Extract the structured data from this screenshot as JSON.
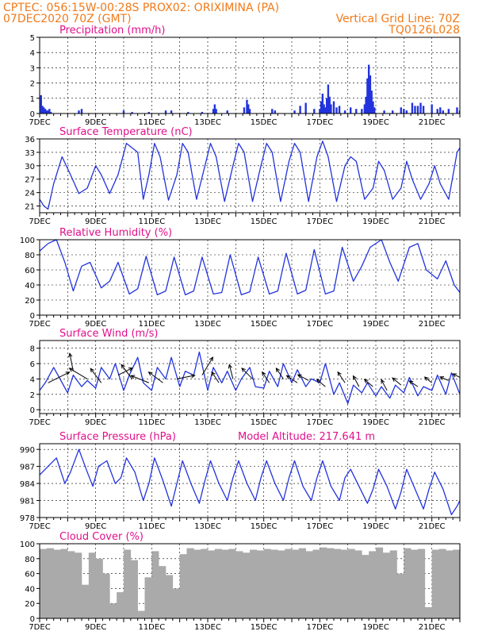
{
  "header": {
    "line1": "CPTEC:   056:15W-00:28S   PROX02: ORIXIMINA (PA)",
    "line2_left": "07DEC2020 70Z (GMT)",
    "line2_right": "Vertical Grid Line: 70Z",
    "line3_right": "TQ0126L028"
  },
  "colors": {
    "header": "#f07a1a",
    "title": "#e0108a",
    "series": "#2233dd",
    "cloud": "#aaaaaa",
    "arrow": "#000000"
  },
  "chart_data": [
    {
      "id": "precip",
      "type": "bar",
      "title": "Precipitation (mm/h)",
      "xlabel": "",
      "ylabel": "",
      "ylim": [
        0,
        5
      ],
      "yticks": [
        0,
        1,
        2,
        3,
        4,
        5
      ],
      "xlim": [
        7,
        22
      ],
      "xticks": [
        "7DEC",
        "9DEC",
        "11DEC",
        "13DEC",
        "15DEC",
        "17DEC",
        "19DEC",
        "21DEC"
      ],
      "x": [
        7.05,
        7.1,
        7.15,
        7.2,
        7.25,
        7.3,
        7.35,
        7.4,
        8.4,
        8.5,
        10.0,
        10.3,
        10.9,
        11.5,
        11.7,
        12.3,
        12.8,
        13.2,
        13.25,
        13.3,
        13.7,
        14.3,
        14.4,
        14.45,
        14.5,
        15.3,
        15.4,
        16.1,
        16.3,
        16.5,
        16.8,
        17.0,
        17.05,
        17.1,
        17.15,
        17.2,
        17.25,
        17.3,
        17.35,
        17.4,
        17.5,
        17.6,
        17.7,
        17.9,
        18.1,
        18.3,
        18.5,
        18.6,
        18.65,
        18.7,
        18.75,
        18.8,
        18.85,
        18.9,
        18.95,
        19.3,
        19.6,
        19.9,
        20.0,
        20.1,
        20.3,
        20.4,
        20.5,
        20.6,
        20.7,
        21.0,
        21.2,
        21.3,
        21.4,
        21.6,
        21.9,
        22.0
      ],
      "values": [
        1.2,
        0.5,
        0.4,
        0.3,
        0.2,
        0.2,
        0.3,
        0.1,
        0.2,
        0.3,
        0.2,
        0.1,
        0.1,
        0.2,
        0.2,
        0.1,
        0.1,
        0.3,
        0.6,
        0.3,
        0.2,
        0.4,
        0.9,
        0.6,
        0.3,
        0.3,
        0.2,
        0.2,
        0.5,
        0.7,
        0.3,
        0.3,
        0.8,
        1.3,
        0.6,
        0.4,
        1.0,
        1.9,
        1.1,
        0.6,
        0.8,
        0.4,
        0.5,
        0.2,
        0.4,
        0.3,
        0.3,
        0.6,
        1.1,
        2.3,
        3.2,
        2.5,
        1.5,
        0.8,
        0.4,
        0.2,
        0.2,
        0.4,
        0.3,
        0.2,
        0.7,
        0.5,
        0.5,
        0.7,
        0.5,
        0.6,
        0.3,
        0.4,
        0.2,
        0.3,
        0.4,
        0.2
      ]
    },
    {
      "id": "temp",
      "type": "line",
      "title": "Surface Temperature (nC)",
      "xlabel": "",
      "ylabel": "",
      "ylim": [
        19.5,
        36
      ],
      "yticks": [
        21,
        24,
        27,
        30,
        33,
        36
      ],
      "xlim": [
        7,
        22
      ],
      "xticks": [
        "7DEC",
        "9DEC",
        "11DEC",
        "13DEC",
        "15DEC",
        "17DEC",
        "19DEC",
        "21DEC"
      ],
      "x": [
        7.0,
        7.15,
        7.3,
        7.5,
        7.8,
        8.1,
        8.4,
        8.7,
        9.0,
        9.2,
        9.5,
        9.8,
        10.1,
        10.5,
        10.7,
        10.9,
        11.1,
        11.3,
        11.6,
        11.9,
        12.1,
        12.3,
        12.6,
        12.9,
        13.1,
        13.3,
        13.6,
        13.9,
        14.1,
        14.3,
        14.6,
        14.9,
        15.1,
        15.3,
        15.6,
        15.9,
        16.1,
        16.3,
        16.6,
        16.9,
        17.1,
        17.3,
        17.6,
        17.9,
        18.1,
        18.3,
        18.6,
        18.9,
        19.1,
        19.3,
        19.6,
        19.9,
        20.1,
        20.3,
        20.6,
        20.9,
        21.1,
        21.3,
        21.6,
        21.9,
        22.0
      ],
      "values": [
        22.5,
        21.0,
        20.3,
        26,
        32,
        28,
        23.8,
        25,
        30,
        28,
        23.8,
        28,
        35,
        33,
        22.5,
        28,
        35,
        32,
        22.3,
        28,
        35,
        33,
        22.5,
        30,
        35,
        32,
        22.0,
        30,
        35,
        33,
        22.0,
        30,
        35,
        33,
        22.0,
        31,
        35,
        33,
        22.0,
        32,
        35.5,
        32,
        22.0,
        30,
        32,
        31,
        22.5,
        25,
        31,
        29,
        22.5,
        25,
        31,
        27,
        22.5,
        26,
        30,
        26,
        22.5,
        33,
        34
      ]
    },
    {
      "id": "rh",
      "type": "line",
      "title": "Relative Humidity (%)",
      "xlabel": "",
      "ylabel": "",
      "ylim": [
        0,
        100
      ],
      "yticks": [
        0,
        20,
        40,
        60,
        80,
        100
      ],
      "xlim": [
        7,
        22
      ],
      "xticks": [
        "7DEC",
        "9DEC",
        "11DEC",
        "13DEC",
        "15DEC",
        "17DEC",
        "19DEC",
        "21DEC"
      ],
      "x": [
        7.0,
        7.3,
        7.6,
        7.9,
        8.2,
        8.5,
        8.8,
        9.2,
        9.5,
        9.8,
        10.2,
        10.5,
        10.8,
        11.2,
        11.5,
        11.8,
        12.2,
        12.5,
        12.8,
        13.2,
        13.5,
        13.8,
        14.2,
        14.5,
        14.8,
        15.2,
        15.5,
        15.8,
        16.2,
        16.5,
        16.8,
        17.2,
        17.5,
        17.8,
        18.2,
        18.5,
        18.8,
        19.2,
        19.5,
        19.8,
        20.2,
        20.5,
        20.8,
        21.2,
        21.5,
        21.8,
        22.0
      ],
      "values": [
        85,
        95,
        100,
        70,
        32,
        65,
        70,
        36,
        45,
        70,
        28,
        35,
        78,
        27,
        32,
        77,
        27,
        32,
        77,
        28,
        30,
        80,
        27,
        31,
        77,
        28,
        32,
        82,
        28,
        33,
        87,
        28,
        32,
        90,
        45,
        65,
        90,
        100,
        70,
        45,
        90,
        95,
        60,
        48,
        72,
        40,
        30
      ]
    },
    {
      "id": "wind",
      "type": "line",
      "title": "Surface Wind (m/s)",
      "xlabel": "",
      "ylabel": "",
      "ylim": [
        -0.5,
        9
      ],
      "yticks": [
        0,
        2,
        4,
        6,
        8
      ],
      "xlim": [
        7,
        22
      ],
      "xticks": [
        "7DEC",
        "9DEC",
        "11DEC",
        "13DEC",
        "15DEC",
        "17DEC",
        "19DEC",
        "21DEC"
      ],
      "x": [
        7.0,
        7.2,
        7.5,
        7.7,
        8.0,
        8.2,
        8.5,
        8.7,
        9.0,
        9.2,
        9.5,
        9.7,
        10.0,
        10.2,
        10.5,
        10.7,
        11.0,
        11.2,
        11.5,
        11.7,
        12.0,
        12.2,
        12.5,
        12.7,
        13.0,
        13.2,
        13.5,
        13.7,
        14.0,
        14.2,
        14.5,
        14.7,
        15.0,
        15.2,
        15.5,
        15.7,
        16.0,
        16.2,
        16.5,
        16.7,
        17.0,
        17.2,
        17.5,
        17.7,
        18.0,
        18.2,
        18.5,
        18.7,
        19.0,
        19.2,
        19.5,
        19.7,
        20.0,
        20.2,
        20.5,
        20.7,
        21.0,
        21.2,
        21.5,
        21.7,
        22.0
      ],
      "values": [
        2.5,
        3.5,
        5.5,
        4.2,
        2.2,
        4.5,
        3.0,
        3.8,
        2.8,
        5.5,
        4.0,
        6.0,
        2.5,
        4.5,
        6.8,
        3.5,
        2.5,
        5.5,
        4.0,
        6.8,
        3.0,
        5.0,
        4.5,
        7.5,
        2.5,
        5.5,
        3.5,
        5.0,
        2.5,
        4.0,
        5.5,
        3.0,
        2.8,
        5.0,
        3.0,
        6.0,
        3.5,
        5.2,
        3.0,
        4.0,
        3.5,
        6.0,
        2.0,
        3.5,
        0.8,
        3.2,
        2.2,
        3.5,
        1.8,
        3.0,
        1.5,
        3.2,
        2.2,
        4.2,
        1.8,
        3.0,
        2.5,
        4.5,
        2.0,
        4.8,
        2.0
      ],
      "arrows": [
        {
          "x": 7.3,
          "y": 3.5,
          "u": 3.0,
          "v": 1.5
        },
        {
          "x": 8.2,
          "y": 5.0,
          "u": -0.5,
          "v": 2.5
        },
        {
          "x": 8.7,
          "y": 4.0,
          "u": -2.5,
          "v": 1.5
        },
        {
          "x": 9.2,
          "y": 3.5,
          "u": -1.5,
          "v": 2.0
        },
        {
          "x": 9.8,
          "y": 4.5,
          "u": 2.0,
          "v": 1.0
        },
        {
          "x": 10.3,
          "y": 4.0,
          "u": -1.5,
          "v": 2.0
        },
        {
          "x": 10.9,
          "y": 3.5,
          "u": -2.5,
          "v": 1.0
        },
        {
          "x": 11.4,
          "y": 3.5,
          "u": -2.0,
          "v": 1.5
        },
        {
          "x": 11.9,
          "y": 4.0,
          "u": 2.5,
          "v": 0.5
        },
        {
          "x": 12.8,
          "y": 4.5,
          "u": 1.5,
          "v": 2.5
        },
        {
          "x": 13.4,
          "y": 3.5,
          "u": -1.0,
          "v": 1.5
        },
        {
          "x": 13.9,
          "y": 4.0,
          "u": -0.5,
          "v": 2.0
        },
        {
          "x": 14.6,
          "y": 4.0,
          "u": -1.5,
          "v": 1.5
        },
        {
          "x": 15.2,
          "y": 3.5,
          "u": -1.0,
          "v": 1.5
        },
        {
          "x": 15.7,
          "y": 4.0,
          "u": -1.0,
          "v": 1.5
        },
        {
          "x": 16.2,
          "y": 3.5,
          "u": -1.5,
          "v": 1.0
        },
        {
          "x": 16.6,
          "y": 3.8,
          "u": -1.5,
          "v": 0.8
        },
        {
          "x": 17.2,
          "y": 3.0,
          "u": -1.2,
          "v": 1.0
        },
        {
          "x": 17.9,
          "y": 3.5,
          "u": -1.0,
          "v": 1.5
        },
        {
          "x": 18.4,
          "y": 3.0,
          "u": -0.8,
          "v": 1.5
        },
        {
          "x": 18.9,
          "y": 3.0,
          "u": -1.2,
          "v": 1.0
        },
        {
          "x": 19.4,
          "y": 2.5,
          "u": -0.8,
          "v": 1.5
        },
        {
          "x": 19.9,
          "y": 3.2,
          "u": -1.2,
          "v": 1.0
        },
        {
          "x": 20.5,
          "y": 3.0,
          "u": -1.2,
          "v": 0.8
        },
        {
          "x": 21.0,
          "y": 3.5,
          "u": -1.0,
          "v": 0.8
        },
        {
          "x": 21.6,
          "y": 3.8,
          "u": -1.2,
          "v": 0.5
        },
        {
          "x": 22.0,
          "y": 4.2,
          "u": -1.0,
          "v": 0.5
        }
      ]
    },
    {
      "id": "press",
      "type": "line",
      "title": "Surface Pressure (hPa)",
      "subtitle": "Model Altitude: 217.641 m",
      "xlabel": "",
      "ylabel": "",
      "ylim": [
        978,
        991
      ],
      "yticks": [
        978,
        981,
        984,
        987,
        990
      ],
      "xlim": [
        7,
        22
      ],
      "xticks": [
        "7DEC",
        "9DEC",
        "11DEC",
        "13DEC",
        "15DEC",
        "17DEC",
        "19DEC",
        "21DEC"
      ],
      "x": [
        7.0,
        7.3,
        7.6,
        7.9,
        8.1,
        8.4,
        8.7,
        8.9,
        9.1,
        9.4,
        9.7,
        9.9,
        10.1,
        10.4,
        10.7,
        10.9,
        11.1,
        11.4,
        11.7,
        11.9,
        12.1,
        12.4,
        12.7,
        12.9,
        13.1,
        13.4,
        13.7,
        13.9,
        14.1,
        14.4,
        14.7,
        14.9,
        15.1,
        15.4,
        15.7,
        15.9,
        16.1,
        16.4,
        16.7,
        16.9,
        17.1,
        17.4,
        17.7,
        17.9,
        18.1,
        18.4,
        18.7,
        18.9,
        19.1,
        19.4,
        19.7,
        19.9,
        20.1,
        20.4,
        20.7,
        20.9,
        21.1,
        21.4,
        21.7,
        21.9,
        22.0
      ],
      "values": [
        985.5,
        987,
        988.5,
        984,
        986,
        990,
        986,
        983.5,
        987,
        988,
        984,
        985,
        988.5,
        986,
        981,
        984,
        988.5,
        984.5,
        980,
        984,
        988,
        984,
        980.5,
        984.5,
        988,
        984,
        981,
        985,
        988,
        984,
        981,
        985,
        988,
        984,
        981,
        985,
        988,
        983.5,
        981,
        985,
        988,
        983.5,
        981,
        985,
        986.5,
        983.5,
        980.5,
        983,
        986.5,
        983.5,
        979.5,
        982.5,
        986.5,
        983,
        979.5,
        983,
        986,
        983,
        978.5,
        980,
        981
      ]
    },
    {
      "id": "cloud",
      "type": "bar",
      "title": "Cloud Cover (%)",
      "xlabel": "",
      "ylabel": "",
      "ylim": [
        0,
        100
      ],
      "yticks": [
        0,
        20,
        40,
        60,
        80,
        100
      ],
      "xlim": [
        7,
        22
      ],
      "xticks": [
        "7DEC",
        "9DEC",
        "11DEC",
        "13DEC",
        "15DEC",
        "17DEC",
        "19DEC",
        "21DEC"
      ],
      "x": [
        7.0,
        7.25,
        7.5,
        7.75,
        8.0,
        8.25,
        8.5,
        8.75,
        9.0,
        9.25,
        9.5,
        9.75,
        10.0,
        10.25,
        10.5,
        10.75,
        11.0,
        11.25,
        11.5,
        11.75,
        12.0,
        12.25,
        12.5,
        12.75,
        13.0,
        13.25,
        13.5,
        13.75,
        14.0,
        14.25,
        14.5,
        14.75,
        15.0,
        15.25,
        15.5,
        15.75,
        16.0,
        16.25,
        16.5,
        16.75,
        17.0,
        17.25,
        17.5,
        17.75,
        18.0,
        18.25,
        18.5,
        18.75,
        19.0,
        19.25,
        19.5,
        19.75,
        20.0,
        20.25,
        20.5,
        20.75,
        21.0,
        21.25,
        21.5,
        21.75,
        22.0
      ],
      "values": [
        93,
        94,
        92,
        93,
        90,
        88,
        45,
        88,
        80,
        60,
        20,
        35,
        92,
        78,
        10,
        55,
        90,
        70,
        58,
        40,
        86,
        94,
        92,
        93,
        91,
        93,
        92,
        93,
        90,
        88,
        92,
        91,
        93,
        92,
        91,
        93,
        92,
        94,
        90,
        92,
        95,
        94,
        93,
        92,
        93,
        91,
        85,
        90,
        95,
        88,
        91,
        60,
        94,
        92,
        93,
        15,
        92,
        93,
        91,
        92,
        92
      ]
    }
  ]
}
